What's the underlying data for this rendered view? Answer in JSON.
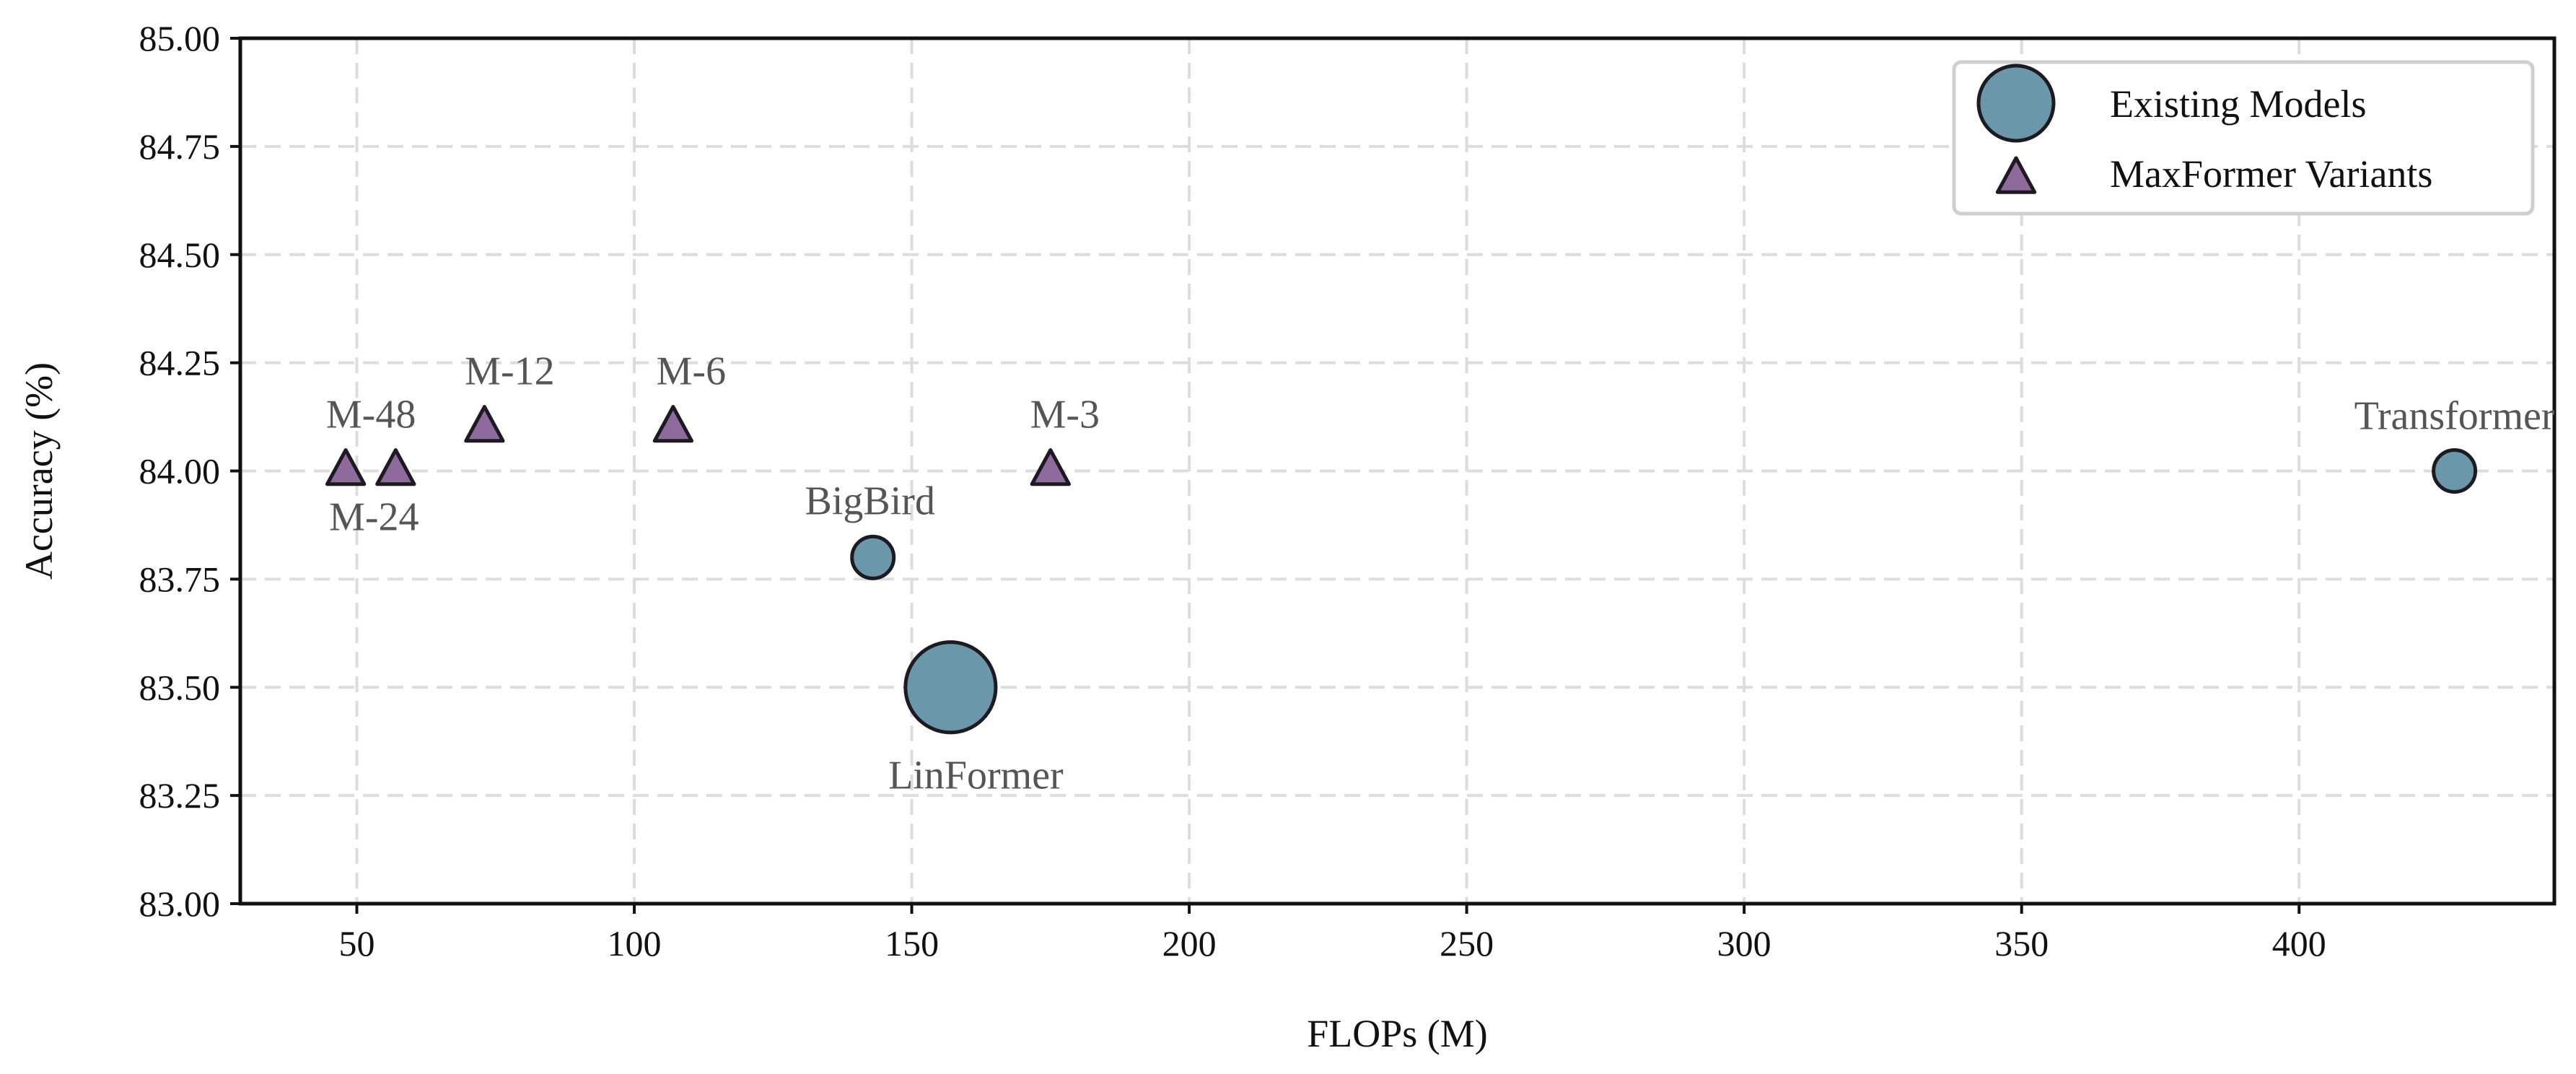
{
  "chart_data": {
    "type": "scatter",
    "title": "",
    "xlabel": "FLOPs (M)",
    "ylabel": "Accuracy (%)",
    "xlim": [
      29,
      446
    ],
    "ylim": [
      83.0,
      85.0
    ],
    "xticks": [
      "50",
      "100",
      "150",
      "200",
      "250",
      "300",
      "350",
      "400"
    ],
    "yticks": [
      "83.00",
      "83.25",
      "83.50",
      "83.75",
      "84.00",
      "84.25",
      "84.50",
      "84.75",
      "85.00"
    ],
    "grid": true,
    "legend_position": "top-right",
    "series": [
      {
        "name": "Existing Models",
        "marker": "circle",
        "color": "#6b97aa",
        "points": [
          {
            "label": "Transformer",
            "x": 428,
            "y": 84.0,
            "size": 1
          },
          {
            "label": "BigBird",
            "x": 143,
            "y": 83.8,
            "size": 1
          },
          {
            "label": "LinFormer",
            "x": 157,
            "y": 83.5,
            "size": 3.4
          }
        ]
      },
      {
        "name": "MaxFormer Variants",
        "marker": "triangle",
        "color": "#8f6a9c",
        "points": [
          {
            "label": "M-48",
            "x": 48,
            "y": 84.0
          },
          {
            "label": "M-24",
            "x": 57,
            "y": 84.0
          },
          {
            "label": "M-12",
            "x": 73,
            "y": 84.1
          },
          {
            "label": "M-6",
            "x": 107,
            "y": 84.1
          },
          {
            "label": "M-3",
            "x": 175,
            "y": 84.0
          }
        ]
      }
    ]
  }
}
